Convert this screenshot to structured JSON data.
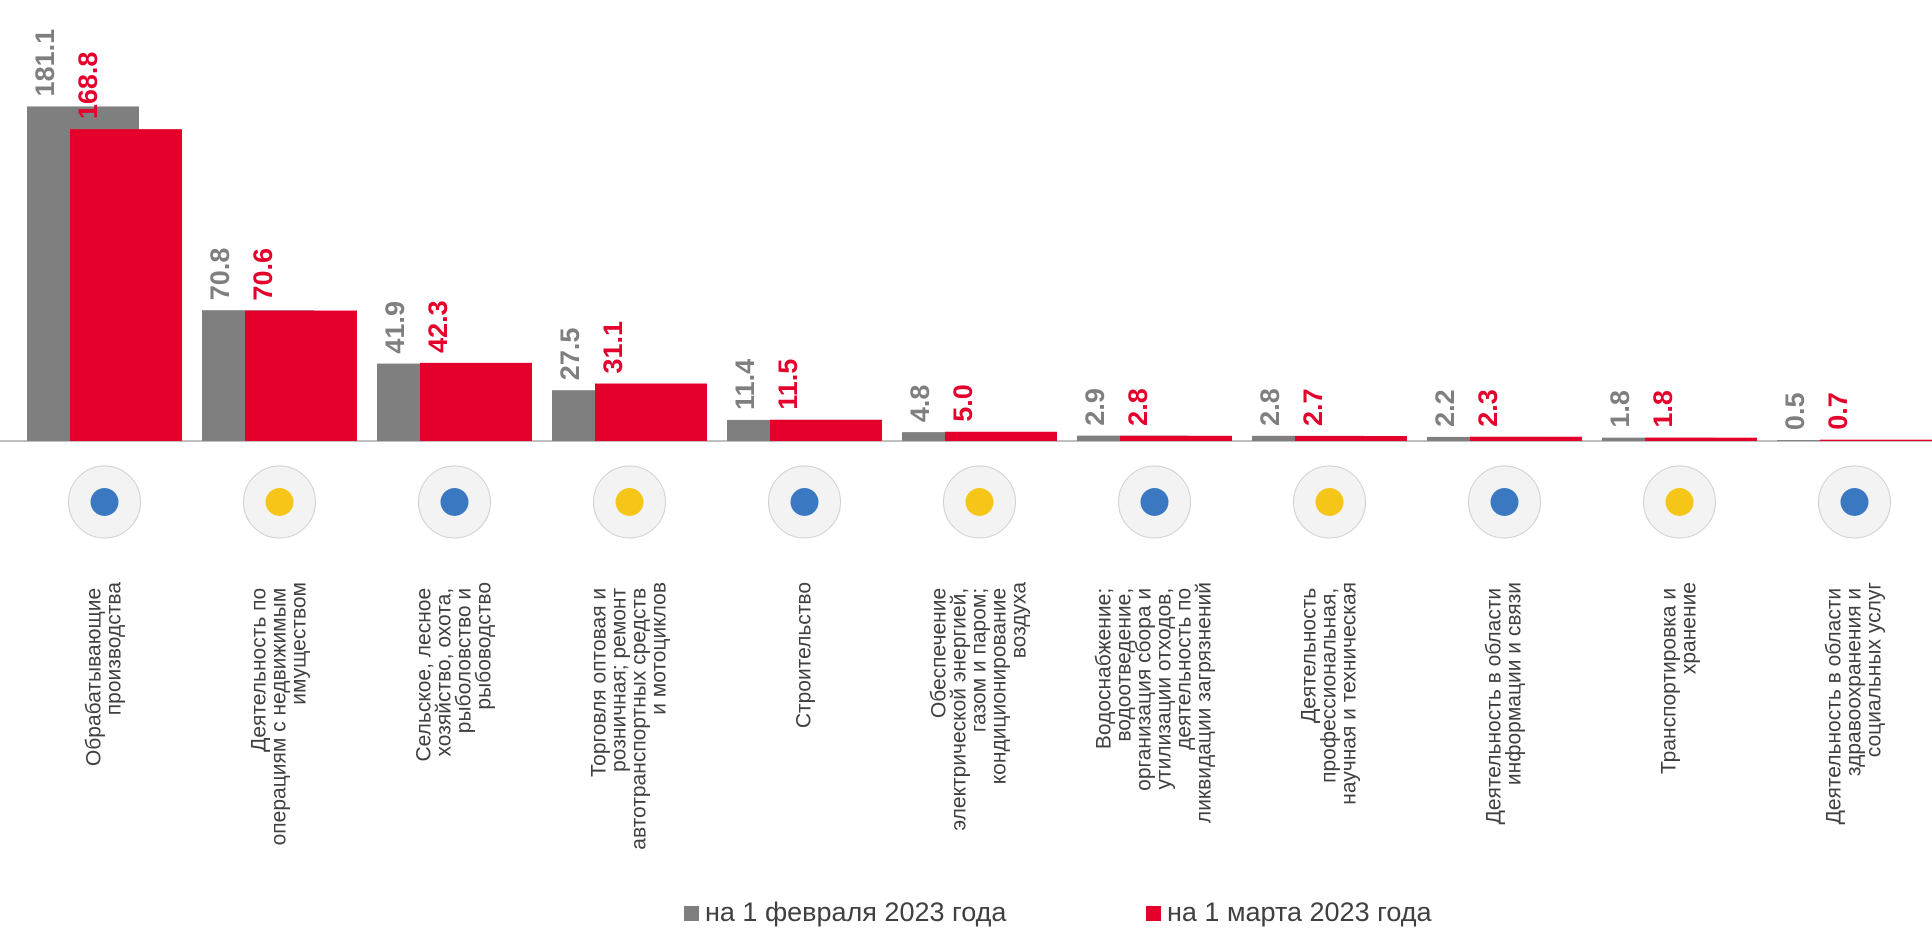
{
  "chart_data": {
    "type": "bar",
    "categories": [
      "Обрабатывающие производства",
      "Деятельность по операциям с недвижимым имуществом",
      "Сельское, лесное хозяйство, охота, рыболовство и рыбоводство",
      "Торговля оптовая и розничная; ремонт автотранспортных средств и мотоциклов",
      "Строительство",
      "Обеспечение электрической энергией, газом и паром; кондиционирование воздуха",
      "Водоснабжение; водоотведение, организация сбора и утилизации отходов, деятельность по ликвидации загрязнений",
      "Деятельность профессиональная, научная и техническая",
      "Деятельность в области информации и связи",
      "Транспортировка и хранение",
      "Деятельность в области здравоохранения и социальных услуг"
    ],
    "series": [
      {
        "name": "на 1 февраля 2023 года",
        "color": "#7f7f7f",
        "values": [
          181.1,
          70.8,
          41.9,
          27.5,
          11.4,
          4.8,
          2.9,
          2.8,
          2.2,
          1.8,
          0.5
        ],
        "value_labels": [
          "181.1",
          "70.8",
          "41.9",
          "27.5",
          "11.4",
          "4.8",
          "2.9",
          "2.8",
          "2.2",
          "1.8",
          "0.5"
        ]
      },
      {
        "name": "на 1 марта 2023 года",
        "color": "#e4002b",
        "values": [
          168.8,
          70.6,
          42.3,
          31.1,
          11.5,
          5.0,
          2.8,
          2.7,
          2.3,
          1.8,
          0.7
        ],
        "value_labels": [
          "168.8",
          "70.6",
          "42.3",
          "31.1",
          "11.5",
          "5.0",
          "2.8",
          "2.7",
          "2.3",
          "1.8",
          "0.7"
        ]
      }
    ],
    "ylim": [
      0,
      190
    ]
  }
}
